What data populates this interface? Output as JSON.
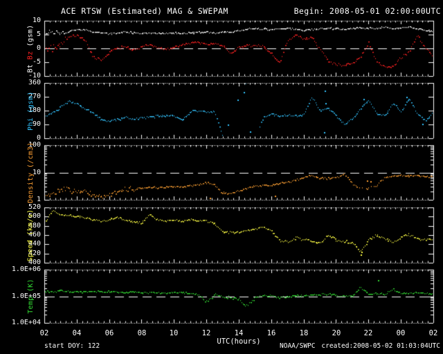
{
  "title": {
    "left": "ACE RTSW (Estimated) MAG & SWEPAM",
    "right": "Begin: 2008-05-01 02:00:00UTC"
  },
  "footer": {
    "start_doy": "start DOY: 122",
    "xlabel": "UTC(hours)",
    "agency": "NOAA/SWPC",
    "created": "created:2008-05-02 01:03:04UTC"
  },
  "colors": {
    "background": "#000000",
    "frame": "#ffffff",
    "bt": "#ffffff",
    "bz": "#ff2222",
    "phi": "#33c4ff",
    "density": "#ffa033",
    "speed": "#ffff44",
    "temp": "#33dd33"
  },
  "chart_data": {
    "type": "scatter",
    "x_axis": {
      "label": "UTC(hours)",
      "range_hours": [
        2,
        26
      ],
      "tick_hours": [
        2,
        4,
        6,
        8,
        10,
        12,
        14,
        16,
        18,
        20,
        22,
        24,
        26
      ],
      "tick_labels": [
        "02",
        "04",
        "06",
        "08",
        "10",
        "12",
        "14",
        "16",
        "18",
        "20",
        "22",
        "00",
        "02"
      ]
    },
    "x_hours": [
      2,
      2.5,
      3,
      3.5,
      4,
      4.5,
      5,
      5.5,
      6,
      6.5,
      7,
      7.5,
      8,
      8.5,
      9,
      9.5,
      10,
      10.5,
      11,
      11.5,
      12,
      12.5,
      13,
      13.5,
      14,
      14.5,
      15,
      15.5,
      16,
      16.5,
      17,
      17.5,
      18,
      18.5,
      19,
      19.5,
      20,
      20.5,
      21,
      21.5,
      22,
      22.5,
      23,
      23.5,
      24,
      24.5,
      25,
      25.5,
      26
    ],
    "panels": [
      {
        "id": "mag",
        "ylabel_segments": [
          {
            "text": "Bt",
            "color": "#ffffff"
          },
          {
            "text": " ",
            "color": "#ffffff"
          },
          {
            "text": "Bz",
            "color": "#ff2222"
          },
          {
            "text": " (gsm)",
            "color": "#ffffff"
          }
        ],
        "scale": "linear",
        "ylim": [
          -10,
          10
        ],
        "yticks": [
          {
            "v": 10,
            "label": "10"
          },
          {
            "v": 5,
            "label": "5"
          },
          {
            "v": 0,
            "label": "0"
          },
          {
            "v": -5,
            "label": "-5"
          },
          {
            "v": -10,
            "label": "-10"
          }
        ],
        "dashed_at": 0,
        "noise_boost": [
          {
            "from": 2,
            "to": 3.3,
            "factor": 3.0
          }
        ],
        "series": [
          {
            "name": "Bz",
            "color": "#ff2222",
            "jitter": 0.6,
            "values": [
              -0.5,
              0.5,
              1.5,
              4.5,
              5.0,
              3.0,
              -3.0,
              -4.3,
              -1.0,
              0.5,
              0.5,
              -0.5,
              1.0,
              1.5,
              0.5,
              0.0,
              0.5,
              1.5,
              2.0,
              2.5,
              1.5,
              2.0,
              1.0,
              -1.5,
              0.5,
              1.0,
              1.2,
              0.8,
              -2.0,
              -5.0,
              3.0,
              5.0,
              3.5,
              4.0,
              0.0,
              -4.5,
              -5.5,
              -6.0,
              -5.5,
              -3.0,
              2.0,
              -5.0,
              -6.5,
              -6.5,
              -3.0,
              -1.0,
              5.0,
              0.0,
              -2.5
            ]
          },
          {
            "name": "Bt",
            "color": "#ffffff",
            "jitter": 0.35,
            "values": [
              5.5,
              6.3,
              5.6,
              6.2,
              7.0,
              6.8,
              6.2,
              5.8,
              5.5,
              5.8,
              6.1,
              5.8,
              5.5,
              5.6,
              5.5,
              5.6,
              5.8,
              5.5,
              5.7,
              6.0,
              6.0,
              5.8,
              6.0,
              6.2,
              6.5,
              7.2,
              7.3,
              7.2,
              7.0,
              7.2,
              7.5,
              7.0,
              6.8,
              7.0,
              7.3,
              7.5,
              7.2,
              7.0,
              7.3,
              7.6,
              7.4,
              7.6,
              7.8,
              7.4,
              7.6,
              7.9,
              7.4,
              6.6,
              6.3
            ]
          }
        ]
      },
      {
        "id": "phi",
        "ylabel_segments": [
          {
            "text": "Phi (gsm)",
            "color": "#33c4ff"
          }
        ],
        "scale": "linear",
        "wrap": true,
        "ylim": [
          0,
          360
        ],
        "yticks": [
          {
            "v": 360,
            "label": "360"
          },
          {
            "v": 270,
            "label": "270"
          },
          {
            "v": 180,
            "label": "180"
          },
          {
            "v": 90,
            "label": "90"
          },
          {
            "v": 0,
            "label": "0"
          }
        ],
        "sparse": [
          {
            "from": 13.0,
            "to": 15.35,
            "prob": 0.3
          }
        ],
        "outliers": [
          [
            13.3,
            90
          ],
          [
            13.9,
            250
          ],
          [
            14.3,
            300
          ],
          [
            14.7,
            45
          ],
          [
            19.25,
            40
          ],
          [
            19.3,
            310
          ],
          [
            19.35,
            230
          ],
          [
            21.7,
            255
          ],
          [
            24.35,
            270
          ],
          [
            25.3,
            95
          ]
        ],
        "series": [
          {
            "name": "Phi",
            "color": "#33c4ff",
            "jitter": 8,
            "values": [
              145,
              165,
              205,
              245,
              225,
              195,
              165,
              120,
              115,
              125,
              140,
              130,
              135,
              140,
              148,
              152,
              150,
              115,
              175,
              180,
              175,
              178,
              5,
              358,
              3,
              352,
              8,
              140,
              160,
              150,
              155,
              148,
              160,
              270,
              185,
              200,
              150,
              90,
              130,
              195,
              250,
              165,
              150,
              230,
              175,
              265,
              160,
              120,
              165
            ]
          }
        ]
      },
      {
        "id": "density",
        "ylabel_segments": [
          {
            "text": "Density (/cm3)",
            "color": "#ffa033"
          }
        ],
        "scale": "log",
        "ylim": [
          1,
          100
        ],
        "yticks": [
          {
            "v": 100,
            "label": "100"
          },
          {
            "v": 10,
            "label": "10"
          },
          {
            "v": 1,
            "label": "1"
          }
        ],
        "dashed_at": 10,
        "noise_boost": [
          {
            "from": 2,
            "to": 7.8,
            "factor": 2.8
          }
        ],
        "sparse": [
          {
            "from": 21.3,
            "to": 22.4,
            "prob": 0.5
          }
        ],
        "outliers": [
          [
            12.2,
            1.2
          ],
          [
            16.2,
            1.45
          ],
          [
            21.9,
            5.2
          ],
          [
            22.1,
            4.8
          ]
        ],
        "series": [
          {
            "name": "Density",
            "color": "#ffa033",
            "jitter": 0.045,
            "values": [
              1.4,
              1.6,
              2.2,
              2.6,
              1.8,
              2.2,
              1.5,
              1.3,
              1.5,
              2.0,
              2.6,
              2.4,
              2.8,
              3.0,
              2.9,
              3.0,
              3.0,
              3.1,
              3.3,
              3.8,
              4.2,
              3.5,
              1.8,
              1.7,
              2.2,
              2.8,
              3.2,
              3.6,
              3.4,
              4.2,
              4.6,
              5.2,
              7.0,
              8.0,
              6.5,
              6.0,
              7.0,
              9.0,
              4.0,
              2.5,
              2.8,
              3.5,
              7.0,
              7.5,
              8.0,
              8.0,
              7.5,
              7.5,
              7.0
            ]
          }
        ]
      },
      {
        "id": "speed",
        "ylabel_segments": [
          {
            "text": "Speed (km/s)",
            "color": "#ffff44"
          }
        ],
        "scale": "linear",
        "ylim": [
          400,
          520
        ],
        "yticks": [
          {
            "v": 520,
            "label": "520"
          },
          {
            "v": 500,
            "label": "500"
          },
          {
            "v": 480,
            "label": "480"
          },
          {
            "v": 460,
            "label": "460"
          },
          {
            "v": 440,
            "label": "440"
          },
          {
            "v": 420,
            "label": "420"
          },
          {
            "v": 400,
            "label": "400"
          }
        ],
        "noise_boost": [
          {
            "from": 16,
            "to": 26,
            "factor": 1.3
          }
        ],
        "outliers": [
          [
            21.5,
            418
          ],
          [
            21.55,
            424
          ]
        ],
        "series": [
          {
            "name": "Speed",
            "color": "#ffff44",
            "jitter": 2.5,
            "values": [
              486,
              514,
              506,
              503,
              501,
              499,
              494,
              491,
              494,
              500,
              492,
              490,
              487,
              506,
              494,
              492,
              493,
              491,
              494,
              492,
              491,
              486,
              468,
              466,
              468,
              470,
              474,
              479,
              470,
              450,
              446,
              455,
              452,
              448,
              442,
              461,
              450,
              447,
              444,
              424,
              450,
              461,
              452,
              445,
              456,
              462,
              452,
              450,
              452
            ]
          }
        ]
      },
      {
        "id": "temp",
        "ylabel_segments": [
          {
            "text": "Temp (K)",
            "color": "#33dd33"
          }
        ],
        "scale": "log",
        "ylim": [
          10000,
          1000000
        ],
        "yticks": [
          {
            "v": 1000000,
            "label": "1.0E+06"
          },
          {
            "v": 100000,
            "label": "1.0E+05"
          },
          {
            "v": 10000,
            "label": "1.0E+04"
          }
        ],
        "dashed_at": 100000,
        "noise_boost": [
          {
            "from": 11.5,
            "to": 15.2,
            "factor": 1.8
          }
        ],
        "outliers": [
          [
            22.6,
            400000
          ]
        ],
        "series": [
          {
            "name": "Temp",
            "color": "#33dd33",
            "jitter": 0.04,
            "values": [
              160000,
              150000,
              170000,
              150000,
              160000,
              150000,
              160000,
              150000,
              155000,
              150000,
              145000,
              150000,
              140000,
              145000,
              140000,
              135000,
              145000,
              140000,
              130000,
              120000,
              65000,
              110000,
              100000,
              90000,
              80000,
              45000,
              95000,
              110000,
              105000,
              95000,
              100000,
              110000,
              105000,
              120000,
              115000,
              130000,
              110000,
              105000,
              110000,
              220000,
              120000,
              130000,
              125000,
              190000,
              140000,
              135000,
              140000,
              135000,
              130000
            ]
          }
        ]
      }
    ]
  }
}
